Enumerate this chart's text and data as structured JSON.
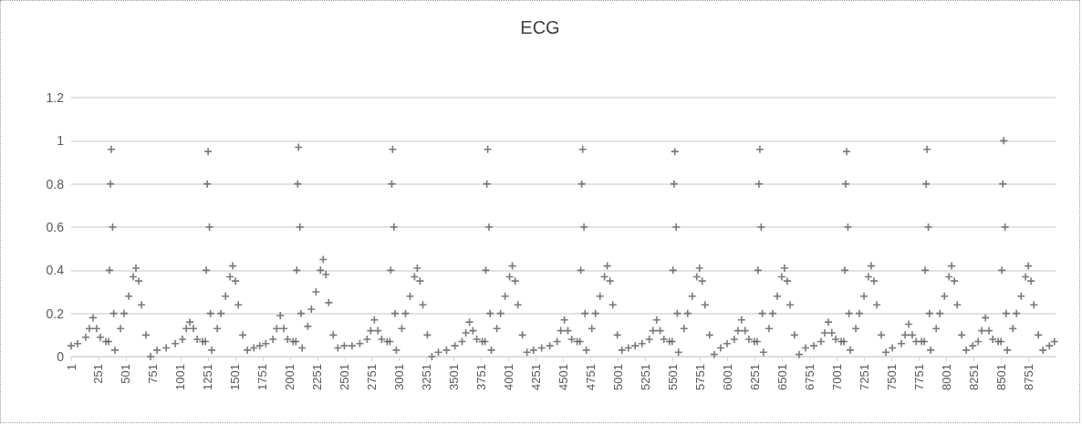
{
  "chart_data": {
    "type": "scatter",
    "title": "ECG",
    "marker": "cross",
    "grid": "y",
    "xlim": [
      1,
      9000
    ],
    "xticks": [
      1,
      251,
      501,
      751,
      1001,
      1251,
      1501,
      1751,
      2001,
      2251,
      2501,
      2751,
      3001,
      3251,
      3501,
      3751,
      4001,
      4251,
      4501,
      4751,
      5001,
      5251,
      5501,
      5751,
      6001,
      6251,
      6501,
      6751,
      7001,
      7251,
      7501,
      7751,
      8001,
      8251,
      8501,
      8751
    ],
    "ylim": [
      0,
      1.2
    ],
    "yticks": [
      0,
      0.2,
      0.4,
      0.6,
      0.8,
      1,
      1.2
    ],
    "series": [
      {
        "color": "#595959",
        "x": [
          1,
          60,
          134,
          168,
          201,
          233,
          268,
          318,
          343,
          351,
          360,
          368,
          380,
          390,
          401,
          452,
          485,
          527,
          568,
          593,
          618,
          644,
          685,
          727,
          786,
          870,
          953,
          1019,
          1053,
          1086,
          1118,
          1153,
          1203,
          1228,
          1236,
          1245,
          1253,
          1265,
          1275,
          1286,
          1337,
          1370,
          1412,
          1453,
          1478,
          1503,
          1529,
          1570,
          1612,
          1671,
          1725,
          1780,
          1846,
          1880,
          1913,
          1945,
          1980,
          2030,
          2055,
          2063,
          2072,
          2080,
          2092,
          2102,
          2113,
          2164,
          2197,
          2239,
          2280,
          2305,
          2330,
          2356,
          2397,
          2439,
          2498,
          2569,
          2640,
          2706,
          2740,
          2773,
          2805,
          2840,
          2890,
          2915,
          2923,
          2932,
          2940,
          2952,
          2962,
          2973,
          3024,
          3057,
          3099,
          3140,
          3165,
          3190,
          3216,
          3257,
          3299,
          3358,
          3433,
          3509,
          3575,
          3609,
          3642,
          3674,
          3709,
          3759,
          3784,
          3792,
          3801,
          3809,
          3821,
          3831,
          3842,
          3893,
          3926,
          3968,
          4009,
          4034,
          4059,
          4085,
          4126,
          4168,
          4227,
          4302,
          4377,
          4443,
          4477,
          4510,
          4542,
          4577,
          4627,
          4652,
          4660,
          4669,
          4677,
          4689,
          4699,
          4710,
          4761,
          4794,
          4836,
          4877,
          4902,
          4927,
          4953,
          4994,
          5036,
          5095,
          5157,
          5220,
          5286,
          5320,
          5353,
          5385,
          5420,
          5470,
          5495,
          5503,
          5512,
          5520,
          5532,
          5542,
          5553,
          5604,
          5637,
          5679,
          5720,
          5745,
          5770,
          5796,
          5837,
          5879,
          5938,
          5997,
          6063,
          6097,
          6130,
          6162,
          6197,
          6247,
          6272,
          6280,
          6289,
          6297,
          6309,
          6319,
          6330,
          6381,
          6414,
          6456,
          6497,
          6522,
          6547,
          6573,
          6614,
          6656,
          6715,
          6790,
          6856,
          6890,
          6923,
          6955,
          6990,
          7040,
          7065,
          7073,
          7082,
          7090,
          7102,
          7112,
          7123,
          7174,
          7207,
          7249,
          7290,
          7315,
          7340,
          7366,
          7407,
          7449,
          7508,
          7591,
          7625,
          7658,
          7690,
          7725,
          7775,
          7800,
          7808,
          7817,
          7825,
          7837,
          7847,
          7858,
          7909,
          7942,
          7984,
          8025,
          8050,
          8075,
          8101,
          8142,
          8184,
          8243,
          8292,
          8326,
          8359,
          8391,
          8426,
          8476,
          8501,
          8509,
          8518,
          8526,
          8538,
          8548,
          8559,
          8610,
          8643,
          8685,
          8726,
          8751,
          8776,
          8802,
          8843,
          8885,
          8944,
          8990
        ],
        "values": [
          0.05,
          0.06,
          0.09,
          0.13,
          0.18,
          0.13,
          0.09,
          0.07,
          0.07,
          0.4,
          0.8,
          0.96,
          0.6,
          0.2,
          0.03,
          0.13,
          0.2,
          0.28,
          0.37,
          0.41,
          0.35,
          0.24,
          0.1,
          0,
          0.03,
          0.04,
          0.06,
          0.08,
          0.13,
          0.16,
          0.13,
          0.08,
          0.07,
          0.07,
          0.4,
          0.8,
          0.95,
          0.6,
          0.2,
          0.03,
          0.13,
          0.2,
          0.28,
          0.37,
          0.42,
          0.35,
          0.24,
          0.1,
          0.03,
          0.04,
          0.05,
          0.06,
          0.08,
          0.13,
          0.19,
          0.13,
          0.08,
          0.07,
          0.07,
          0.4,
          0.8,
          0.97,
          0.6,
          0.2,
          0.04,
          0.14,
          0.22,
          0.3,
          0.4,
          0.45,
          0.38,
          0.25,
          0.1,
          0.04,
          0.05,
          0.05,
          0.06,
          0.08,
          0.12,
          0.17,
          0.12,
          0.08,
          0.07,
          0.07,
          0.4,
          0.8,
          0.96,
          0.6,
          0.2,
          0.03,
          0.13,
          0.2,
          0.28,
          0.37,
          0.41,
          0.35,
          0.24,
          0.1,
          0,
          0.02,
          0.03,
          0.05,
          0.07,
          0.11,
          0.16,
          0.12,
          0.08,
          0.07,
          0.07,
          0.4,
          0.8,
          0.96,
          0.6,
          0.2,
          0.03,
          0.13,
          0.2,
          0.28,
          0.37,
          0.42,
          0.35,
          0.24,
          0.1,
          0.02,
          0.03,
          0.04,
          0.05,
          0.07,
          0.12,
          0.17,
          0.12,
          0.08,
          0.07,
          0.07,
          0.4,
          0.8,
          0.96,
          0.6,
          0.2,
          0.03,
          0.13,
          0.2,
          0.28,
          0.37,
          0.42,
          0.35,
          0.24,
          0.1,
          0.03,
          0.04,
          0.05,
          0.06,
          0.08,
          0.12,
          0.17,
          0.12,
          0.08,
          0.07,
          0.07,
          0.4,
          0.8,
          0.95,
          0.6,
          0.2,
          0.02,
          0.13,
          0.2,
          0.28,
          0.37,
          0.41,
          0.35,
          0.24,
          0.1,
          0.01,
          0.04,
          0.06,
          0.08,
          0.12,
          0.17,
          0.12,
          0.08,
          0.07,
          0.07,
          0.4,
          0.8,
          0.96,
          0.6,
          0.2,
          0.02,
          0.13,
          0.2,
          0.28,
          0.37,
          0.41,
          0.35,
          0.24,
          0.1,
          0.01,
          0.04,
          0.05,
          0.07,
          0.11,
          0.16,
          0.11,
          0.08,
          0.07,
          0.07,
          0.4,
          0.8,
          0.95,
          0.6,
          0.2,
          0.03,
          0.13,
          0.2,
          0.28,
          0.37,
          0.42,
          0.35,
          0.24,
          0.1,
          0.02,
          0.04,
          0.06,
          0.1,
          0.15,
          0.1,
          0.07,
          0.07,
          0.07,
          0.4,
          0.8,
          0.96,
          0.6,
          0.2,
          0.03,
          0.13,
          0.2,
          0.28,
          0.37,
          0.42,
          0.35,
          0.24,
          0.1,
          0.03,
          0.05,
          0.07,
          0.12,
          0.18,
          0.12,
          0.08,
          0.07,
          0.07,
          0.4,
          0.8,
          1,
          0.6,
          0.2,
          0.03,
          0.13,
          0.2,
          0.28,
          0.37,
          0.42,
          0.35,
          0.24,
          0.1,
          0.03,
          0.05,
          0.07
        ]
      }
    ]
  }
}
